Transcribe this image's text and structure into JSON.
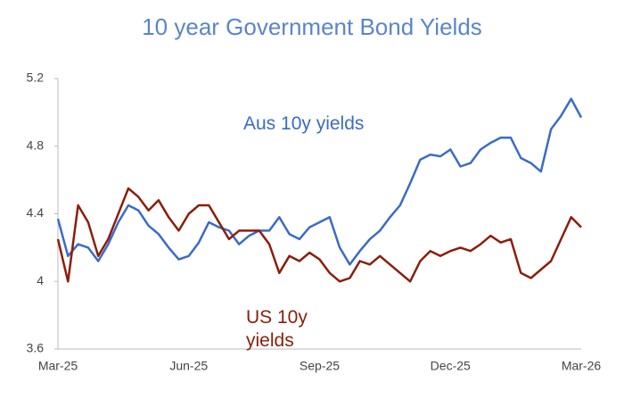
{
  "chart_data": {
    "type": "line",
    "title": "10 year Government Bond Yields",
    "categories": [
      "Mar-25",
      null,
      null,
      null,
      null,
      null,
      null,
      null,
      null,
      null,
      null,
      null,
      null,
      "Jun-25",
      null,
      null,
      null,
      null,
      null,
      null,
      null,
      null,
      null,
      null,
      null,
      null,
      "Sep-25",
      null,
      null,
      null,
      null,
      null,
      null,
      null,
      null,
      null,
      null,
      null,
      null,
      "Dec-25",
      null,
      null,
      null,
      null,
      null,
      null,
      null,
      null,
      null,
      null,
      null,
      null,
      "Mar-26"
    ],
    "series": [
      {
        "name": "Aus 10y yields",
        "color": "#3a6cc6",
        "values": [
          4.37,
          4.15,
          4.22,
          4.2,
          4.12,
          4.22,
          4.35,
          4.45,
          4.42,
          4.33,
          4.28,
          4.2,
          4.13,
          4.15,
          4.23,
          4.35,
          4.32,
          4.3,
          4.22,
          4.27,
          4.3,
          4.3,
          4.38,
          4.28,
          4.25,
          4.32,
          4.35,
          4.38,
          4.2,
          4.1,
          4.18,
          4.25,
          4.3,
          4.38,
          4.45,
          4.58,
          4.72,
          4.75,
          4.74,
          4.78,
          4.68,
          4.7,
          4.78,
          4.82,
          4.85,
          4.85,
          4.73,
          4.7,
          4.65,
          4.9,
          4.98,
          5.08,
          4.97
        ]
      },
      {
        "name": "US 10y yields",
        "color": "#8b1e0c",
        "values": [
          4.25,
          4.0,
          4.45,
          4.35,
          4.15,
          4.25,
          4.4,
          4.55,
          4.5,
          4.42,
          4.48,
          4.38,
          4.3,
          4.4,
          4.45,
          4.45,
          4.35,
          4.25,
          4.3,
          4.3,
          4.3,
          4.22,
          4.05,
          4.15,
          4.12,
          4.17,
          4.13,
          4.05,
          4.0,
          4.02,
          4.12,
          4.1,
          4.15,
          4.1,
          4.05,
          4.0,
          4.12,
          4.18,
          4.15,
          4.18,
          4.2,
          4.18,
          4.22,
          4.27,
          4.23,
          4.25,
          4.05,
          4.02,
          4.07,
          4.12,
          4.25,
          4.38,
          4.32
        ]
      }
    ],
    "ylim": [
      3.6,
      5.2
    ],
    "yticks": [
      3.6,
      4.0,
      4.4,
      4.8,
      5.2
    ],
    "grid": false
  }
}
